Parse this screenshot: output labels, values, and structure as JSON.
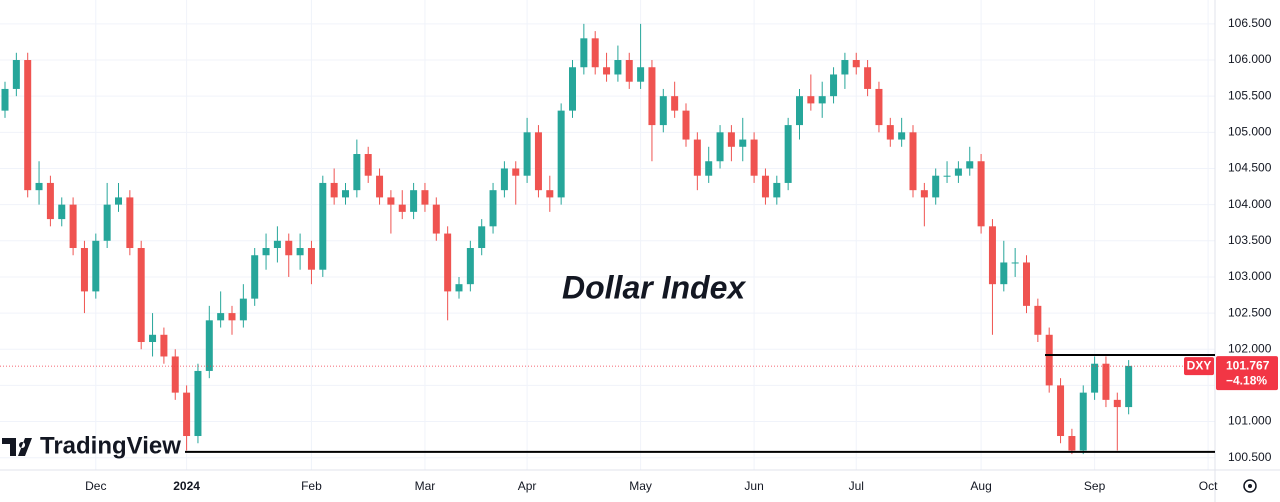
{
  "chart_data": {
    "type": "candlestick",
    "annotation": "Dollar Index",
    "brand": "TradingView",
    "categories": [
      null,
      null,
      null,
      null,
      null,
      null,
      null,
      null,
      "Dec",
      null,
      null,
      null,
      null,
      null,
      null,
      null,
      "2024",
      null,
      null,
      null,
      null,
      null,
      null,
      null,
      null,
      null,
      null,
      "Feb",
      null,
      null,
      null,
      null,
      null,
      null,
      null,
      null,
      null,
      "Mar",
      null,
      null,
      null,
      null,
      null,
      null,
      null,
      null,
      "Apr",
      null,
      null,
      null,
      null,
      null,
      null,
      null,
      null,
      null,
      "May",
      null,
      null,
      null,
      null,
      null,
      null,
      null,
      null,
      null,
      "Jun",
      null,
      null,
      null,
      null,
      null,
      null,
      null,
      null,
      "Jul",
      null,
      null,
      null,
      null,
      null,
      null,
      null,
      null,
      null,
      null,
      "Aug",
      null,
      null,
      null,
      null,
      null,
      null,
      null,
      null,
      null,
      "Sep",
      null,
      null,
      null,
      null,
      null,
      null,
      null,
      null,
      null,
      "Oct"
    ],
    "open": [
      105.3,
      105.6,
      106.0,
      104.2,
      104.3,
      103.8,
      104.0,
      103.4,
      102.8,
      103.5,
      104.0,
      104.1,
      103.4,
      102.1,
      102.2,
      101.9,
      101.4,
      100.8,
      101.7,
      102.4,
      102.5,
      102.4,
      102.7,
      103.3,
      103.4,
      103.5,
      103.3,
      103.4,
      103.1,
      104.3,
      104.1,
      104.2,
      104.7,
      104.4,
      104.1,
      104.0,
      103.9,
      104.2,
      104.0,
      103.6,
      102.8,
      102.9,
      103.4,
      103.7,
      104.2,
      104.5,
      104.4,
      105.0,
      104.2,
      104.1,
      105.3,
      105.9,
      106.3,
      105.9,
      105.8,
      106.0,
      105.7,
      105.9,
      105.1,
      105.5,
      105.3,
      104.9,
      104.4,
      104.6,
      105.0,
      104.8,
      104.9,
      104.4,
      104.1,
      104.3,
      105.1,
      105.5,
      105.4,
      105.5,
      105.8,
      106.0,
      105.9,
      105.6,
      105.1,
      104.9,
      105.0,
      104.2,
      104.1,
      104.4,
      104.4,
      104.5,
      104.6,
      103.7,
      102.9,
      103.2,
      103.2,
      102.6,
      102.2,
      101.5,
      100.8,
      100.6,
      101.4,
      101.8,
      101.3,
      101.2,
      null,
      null,
      null,
      null,
      null,
      null,
      null
    ],
    "high": [
      105.7,
      106.1,
      106.1,
      104.6,
      104.4,
      104.1,
      104.1,
      103.5,
      103.6,
      104.3,
      104.3,
      104.2,
      103.5,
      102.5,
      102.3,
      102.0,
      101.5,
      101.8,
      102.6,
      102.8,
      102.6,
      102.9,
      103.4,
      103.6,
      103.7,
      103.6,
      103.6,
      103.5,
      104.4,
      104.5,
      104.3,
      104.9,
      104.8,
      104.5,
      104.2,
      104.2,
      104.3,
      104.3,
      104.1,
      103.7,
      103.0,
      103.5,
      103.8,
      104.3,
      104.6,
      104.6,
      105.2,
      105.1,
      104.4,
      105.4,
      106.0,
      106.5,
      106.4,
      106.1,
      106.2,
      106.1,
      106.5,
      106.0,
      105.6,
      105.7,
      105.4,
      105.0,
      104.8,
      105.1,
      105.1,
      105.2,
      105.0,
      104.5,
      104.4,
      105.2,
      105.6,
      105.8,
      105.7,
      105.9,
      106.1,
      106.1,
      106.0,
      105.7,
      105.2,
      105.2,
      105.1,
      104.3,
      104.5,
      104.6,
      104.6,
      104.8,
      104.7,
      103.8,
      103.5,
      103.4,
      103.3,
      102.7,
      102.3,
      101.6,
      100.9,
      101.5,
      101.9,
      101.9,
      101.4,
      101.85,
      null,
      null,
      null,
      null,
      null,
      null,
      null
    ],
    "low": [
      105.2,
      105.5,
      104.1,
      104.0,
      103.7,
      103.7,
      103.3,
      102.5,
      102.7,
      103.4,
      103.9,
      103.3,
      102.0,
      101.9,
      101.8,
      101.3,
      100.6,
      100.7,
      101.6,
      102.3,
      102.2,
      102.3,
      102.6,
      103.1,
      103.2,
      103.0,
      103.1,
      102.9,
      103.0,
      104.0,
      104.0,
      104.1,
      104.3,
      104.0,
      103.6,
      103.8,
      103.8,
      103.9,
      103.5,
      102.4,
      102.7,
      102.8,
      103.3,
      103.6,
      104.1,
      104.0,
      104.3,
      104.1,
      103.9,
      104.0,
      105.2,
      105.8,
      105.8,
      105.7,
      105.7,
      105.6,
      105.6,
      104.6,
      105.0,
      105.2,
      104.8,
      104.2,
      104.3,
      104.5,
      104.6,
      104.6,
      104.3,
      104.0,
      104.0,
      104.2,
      104.9,
      105.3,
      105.2,
      105.4,
      105.6,
      105.8,
      105.5,
      105.0,
      104.8,
      104.8,
      104.1,
      103.7,
      104.0,
      104.3,
      104.3,
      104.4,
      103.6,
      102.2,
      102.8,
      103.0,
      102.5,
      102.1,
      101.4,
      100.7,
      100.55,
      100.55,
      101.3,
      101.2,
      100.6,
      101.1,
      null,
      null,
      null,
      null,
      null,
      null,
      null
    ],
    "close": [
      105.6,
      106.0,
      104.2,
      104.3,
      103.8,
      104.0,
      103.4,
      102.8,
      103.5,
      104.0,
      104.1,
      103.4,
      102.1,
      102.2,
      101.9,
      101.4,
      100.8,
      101.7,
      102.4,
      102.5,
      102.4,
      102.7,
      103.3,
      103.4,
      103.5,
      103.3,
      103.4,
      103.1,
      104.3,
      104.1,
      104.2,
      104.7,
      104.4,
      104.1,
      104.0,
      103.9,
      104.2,
      104.0,
      103.6,
      102.8,
      102.9,
      103.4,
      103.7,
      104.2,
      104.5,
      104.4,
      105.0,
      104.2,
      104.1,
      105.3,
      105.9,
      106.3,
      105.9,
      105.8,
      106.0,
      105.7,
      105.9,
      105.1,
      105.5,
      105.3,
      104.9,
      104.4,
      104.6,
      105.0,
      104.8,
      104.9,
      104.4,
      104.1,
      104.3,
      105.1,
      105.5,
      105.4,
      105.5,
      105.8,
      106.0,
      105.9,
      105.6,
      105.1,
      104.9,
      105.0,
      104.2,
      104.1,
      104.4,
      104.4,
      104.5,
      104.6,
      103.7,
      102.9,
      103.2,
      103.2,
      102.6,
      102.2,
      101.5,
      100.8,
      100.6,
      101.4,
      101.8,
      101.3,
      101.2,
      101.77,
      null,
      null,
      null,
      null,
      null,
      null,
      null
    ],
    "up_color": "#26a69a",
    "down_color": "#ef5350",
    "levels": [
      101.92,
      100.58
    ],
    "last_price": {
      "symbol": "DXY",
      "value": 101.767,
      "label": "101.767",
      "change": "−4.18%"
    },
    "ylim": [
      100.33,
      106.83
    ],
    "yticks": [
      {
        "value": 100.5,
        "label": "100.500"
      },
      {
        "value": 101,
        "label": "101.000"
      },
      {
        "value": 101.5,
        "label": "101.500"
      },
      {
        "value": 102,
        "label": "102.000"
      },
      {
        "value": 102.5,
        "label": "102.500"
      },
      {
        "value": 103,
        "label": "103.000"
      },
      {
        "value": 103.5,
        "label": "103.500"
      },
      {
        "value": 104,
        "label": "104.000"
      },
      {
        "value": 104.5,
        "label": "104.500"
      },
      {
        "value": 105,
        "label": "105.000"
      },
      {
        "value": 105.5,
        "label": "105.500"
      },
      {
        "value": 106,
        "label": "106.000"
      },
      {
        "value": 106.5,
        "label": "106.500"
      }
    ],
    "grid": true
  }
}
